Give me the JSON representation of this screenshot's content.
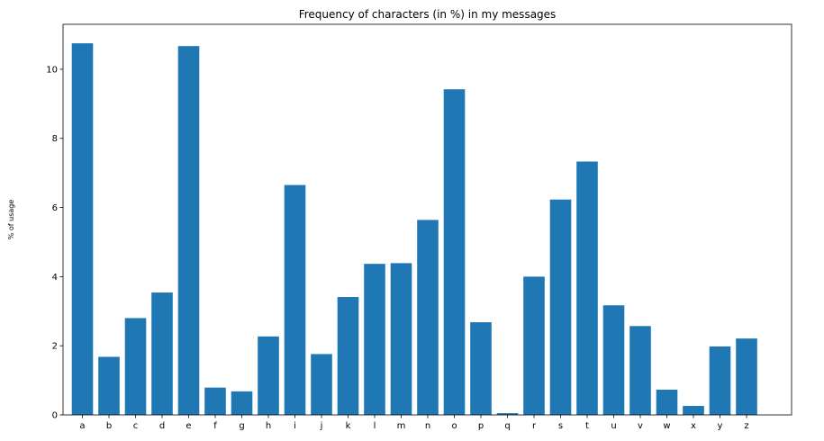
{
  "chart_data": {
    "type": "bar",
    "title": "Frequency of characters (in %) in my messages",
    "xlabel": "",
    "ylabel": "% of usage",
    "categories": [
      "a",
      "b",
      "c",
      "d",
      "e",
      "f",
      "g",
      "h",
      "i",
      "j",
      "k",
      "l",
      "m",
      "n",
      "o",
      "p",
      "q",
      "r",
      "s",
      "t",
      "u",
      "v",
      "w",
      "x",
      "y",
      "z"
    ],
    "values": [
      10.75,
      1.68,
      2.8,
      3.54,
      10.67,
      0.79,
      0.68,
      2.27,
      6.65,
      1.76,
      3.41,
      4.37,
      4.39,
      5.64,
      9.42,
      2.68,
      0.05,
      4.0,
      6.23,
      7.33,
      3.17,
      2.57,
      0.73,
      0.26,
      1.98,
      2.21
    ],
    "ylim": [
      0,
      11.3
    ],
    "yticks": [
      0,
      2,
      4,
      6,
      8,
      10
    ],
    "bar_color": "#1f77b4",
    "grid": false,
    "legend": "none"
  }
}
